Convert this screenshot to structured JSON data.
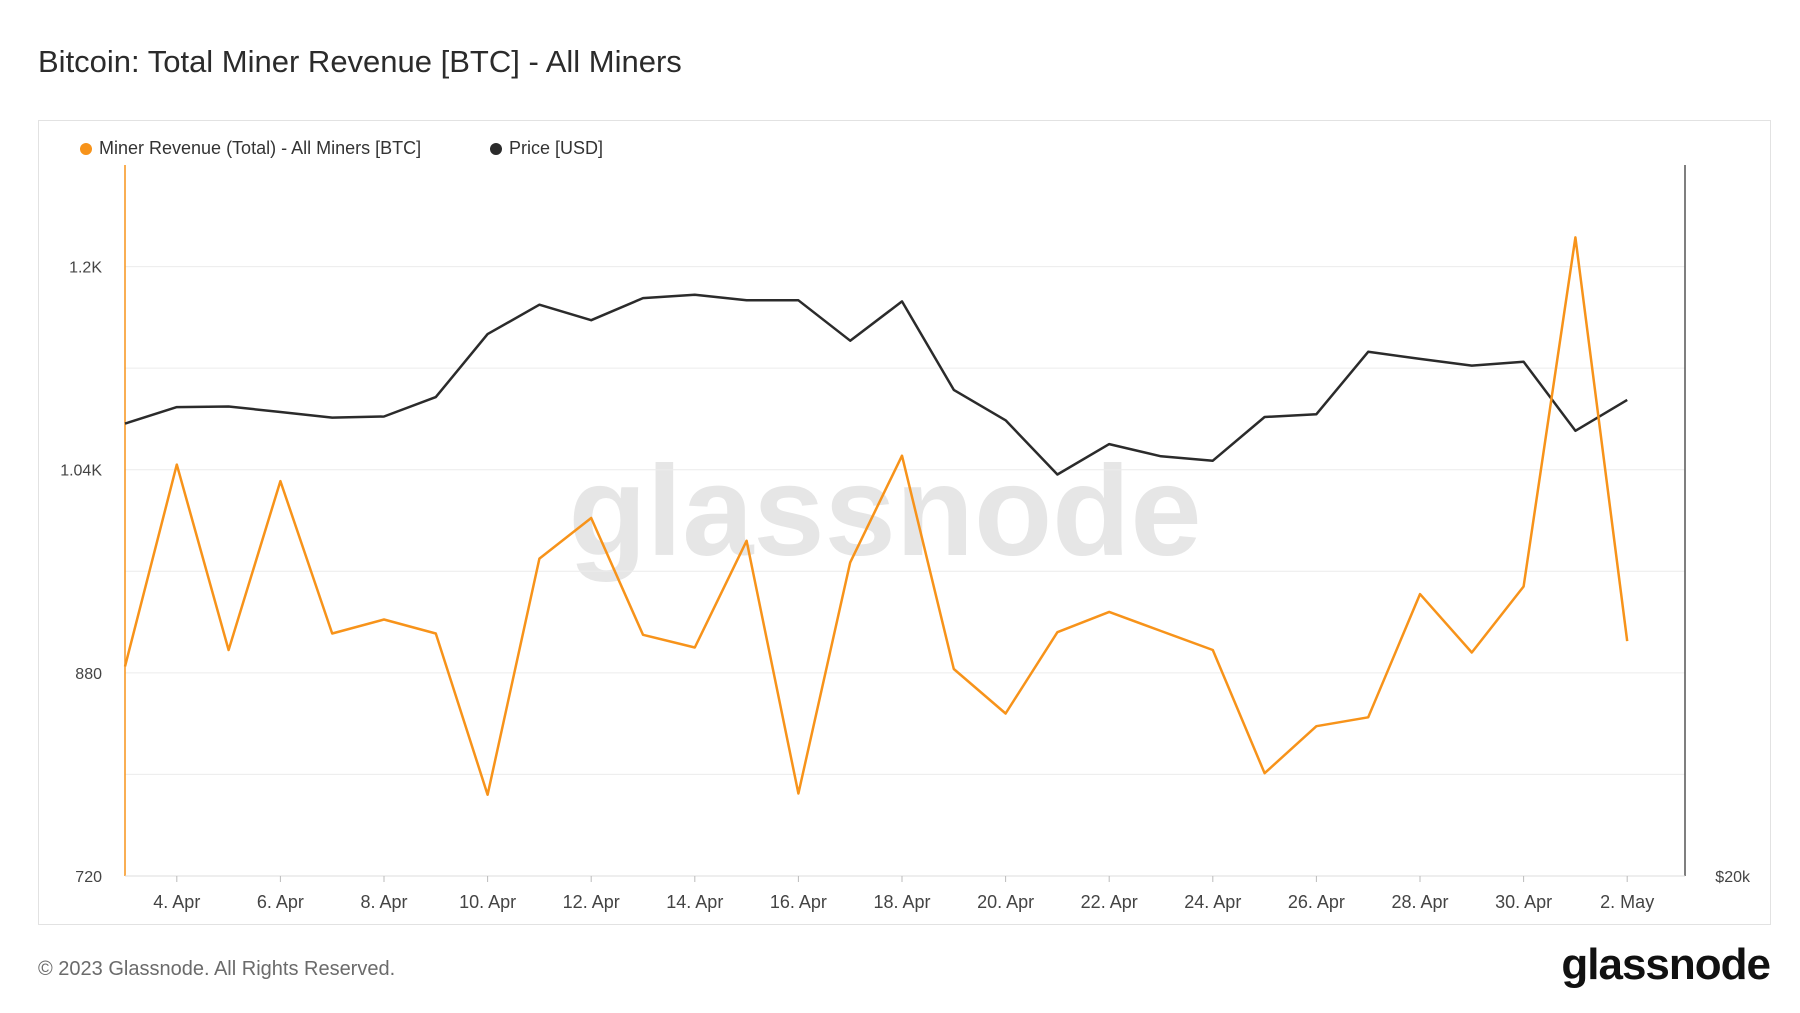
{
  "title": "Bitcoin: Total Miner Revenue [BTC] - All Miners",
  "footer": "© 2023 Glassnode. All Rights Reserved.",
  "brand": "glassnode",
  "watermark": "glassnode",
  "chart_data": {
    "type": "line",
    "title": "Bitcoin: Total Miner Revenue [BTC] - All Miners",
    "x": [
      "3. Apr",
      "4. Apr",
      "5. Apr",
      "6. Apr",
      "7. Apr",
      "8. Apr",
      "9. Apr",
      "10. Apr",
      "11. Apr",
      "12. Apr",
      "13. Apr",
      "14. Apr",
      "15. Apr",
      "16. Apr",
      "17. Apr",
      "18. Apr",
      "19. Apr",
      "20. Apr",
      "21. Apr",
      "22. Apr",
      "23. Apr",
      "24. Apr",
      "25. Apr",
      "26. Apr",
      "27. Apr",
      "28. Apr",
      "29. Apr",
      "30. Apr",
      "1. May",
      "2. May"
    ],
    "x_tick_labels": [
      "4. Apr",
      "6. Apr",
      "8. Apr",
      "10. Apr",
      "12. Apr",
      "14. Apr",
      "16. Apr",
      "18. Apr",
      "20. Apr",
      "22. Apr",
      "24. Apr",
      "26. Apr",
      "28. Apr",
      "30. Apr",
      "2. May"
    ],
    "y_tick_labels": [
      "720",
      "880",
      "1.04K",
      "1.2K"
    ],
    "y_right_tick_labels": [
      "$20k"
    ],
    "ylim": [
      720,
      1280
    ],
    "legend_position": "top-left",
    "grid": true,
    "colors": {
      "revenue": "#f7931a",
      "price": "#2b2b2b"
    },
    "series": [
      {
        "name": "Miner Revenue (Total) - All Miners [BTC]",
        "axis": "left",
        "values": [
          885,
          1044,
          898,
          1031,
          911,
          922,
          911,
          784,
          970,
          1002,
          910,
          900,
          984,
          785,
          967,
          1051,
          883,
          848,
          912,
          928,
          913,
          898,
          801,
          838,
          845,
          942,
          896,
          948,
          1223,
          905
        ]
      },
      {
        "name": "Price [USD]",
        "axis": "right",
        "values": [
          28180,
          28480,
          28490,
          28390,
          28290,
          28310,
          28660,
          29800,
          30330,
          30050,
          30450,
          30510,
          30410,
          30410,
          29680,
          30390,
          28790,
          28240,
          27260,
          27810,
          27590,
          27510,
          28300,
          28350,
          29480,
          29350,
          29230,
          29300,
          28050,
          28610
        ]
      }
    ]
  }
}
